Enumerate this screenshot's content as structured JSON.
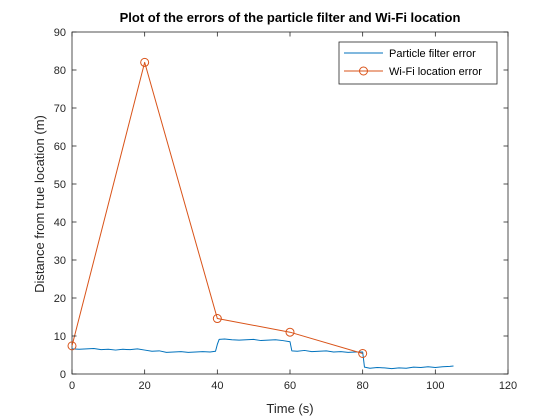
{
  "chart_data": {
    "type": "line",
    "title": "Plot of the errors of the particle filter and Wi-Fi location",
    "xlabel": "Time (s)",
    "ylabel": "Distance from true location (m)",
    "xlim": [
      0,
      120
    ],
    "ylim": [
      0,
      90
    ],
    "xticks": [
      0,
      20,
      40,
      60,
      80,
      100,
      120
    ],
    "yticks": [
      0,
      10,
      20,
      30,
      40,
      50,
      60,
      70,
      80,
      90
    ],
    "grid": false,
    "legend_position": "top-right",
    "series": [
      {
        "name": "Particle filter error",
        "color": "#0072BD",
        "marker": "none",
        "x": [
          0,
          2,
          4,
          6,
          8,
          10,
          12,
          14,
          16,
          18,
          20,
          22,
          24,
          26,
          28,
          30,
          32,
          34,
          36,
          38,
          39.5,
          40,
          40.5,
          42,
          44,
          46,
          48,
          50,
          52,
          54,
          56,
          58,
          60,
          60.5,
          62,
          64,
          66,
          68,
          70,
          72,
          74,
          76,
          78,
          80,
          80.5,
          82,
          84,
          86,
          88,
          90,
          92,
          94,
          96,
          98,
          100,
          102,
          104,
          105
        ],
        "y": [
          6.6,
          6.5,
          6.6,
          6.7,
          6.4,
          6.5,
          6.3,
          6.5,
          6.4,
          6.6,
          6.3,
          6.0,
          6.1,
          5.7,
          5.8,
          5.9,
          5.7,
          5.8,
          5.9,
          5.8,
          6.0,
          7.8,
          9.1,
          9.2,
          9.0,
          8.9,
          9.0,
          9.1,
          8.8,
          8.9,
          9.0,
          8.8,
          8.5,
          6.1,
          6.0,
          6.2,
          5.9,
          6.0,
          6.1,
          5.8,
          5.9,
          5.7,
          5.8,
          5.8,
          1.8,
          1.5,
          1.7,
          1.6,
          1.4,
          1.6,
          1.5,
          1.8,
          1.7,
          1.9,
          1.7,
          1.9,
          2.0,
          2.1
        ]
      },
      {
        "name": "Wi-Fi location error",
        "color": "#D95319",
        "marker": "circle",
        "x": [
          0,
          20,
          40,
          60,
          80
        ],
        "y": [
          7.4,
          82,
          14.6,
          11,
          5.4
        ]
      }
    ]
  }
}
